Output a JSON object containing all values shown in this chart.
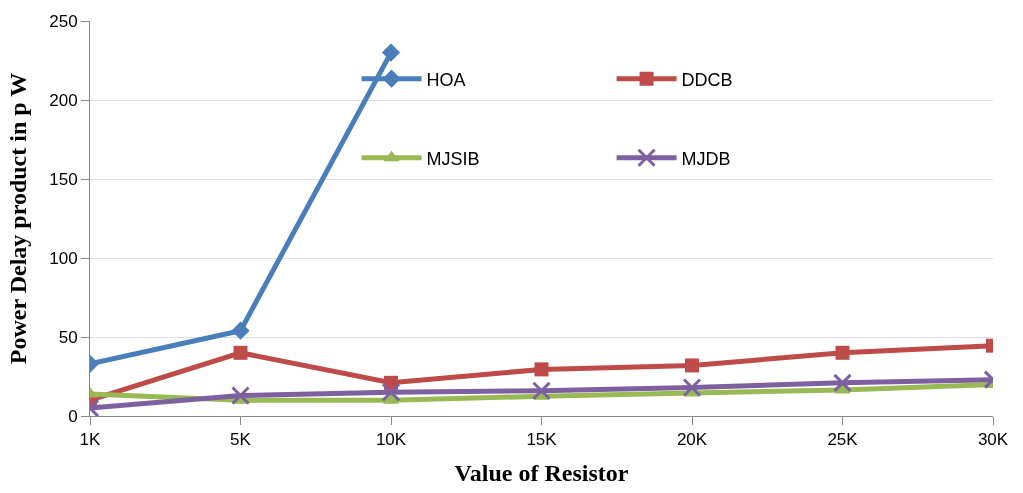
{
  "chart_data": {
    "type": "line",
    "xlabel": "Value of Resistor",
    "ylabel": "Power Delay product in p W",
    "categories": [
      "1K",
      "5K",
      "10K",
      "15K",
      "20K",
      "25K",
      "30K"
    ],
    "series": [
      {
        "name": "HOA",
        "color": "#4a7ebb",
        "marker": "diamond",
        "values": [
          33,
          54,
          230,
          null,
          null,
          null,
          null
        ]
      },
      {
        "name": "DDCB",
        "color": "#be4b48",
        "marker": "square",
        "values": [
          10,
          40,
          21,
          29.5,
          32,
          40,
          44.5
        ]
      },
      {
        "name": "MJSIB",
        "color": "#98b954",
        "marker": "triangle",
        "values": [
          14,
          10,
          10,
          12.5,
          14.5,
          16.5,
          20
        ]
      },
      {
        "name": "MJDB",
        "color": "#7d60a0",
        "marker": "cross",
        "values": [
          5,
          13,
          15,
          16,
          18,
          21,
          23
        ]
      }
    ],
    "ylim": [
      0,
      250
    ],
    "yticks": [
      0,
      50,
      100,
      150,
      200,
      250
    ],
    "grid": "y",
    "legend": "top right"
  }
}
